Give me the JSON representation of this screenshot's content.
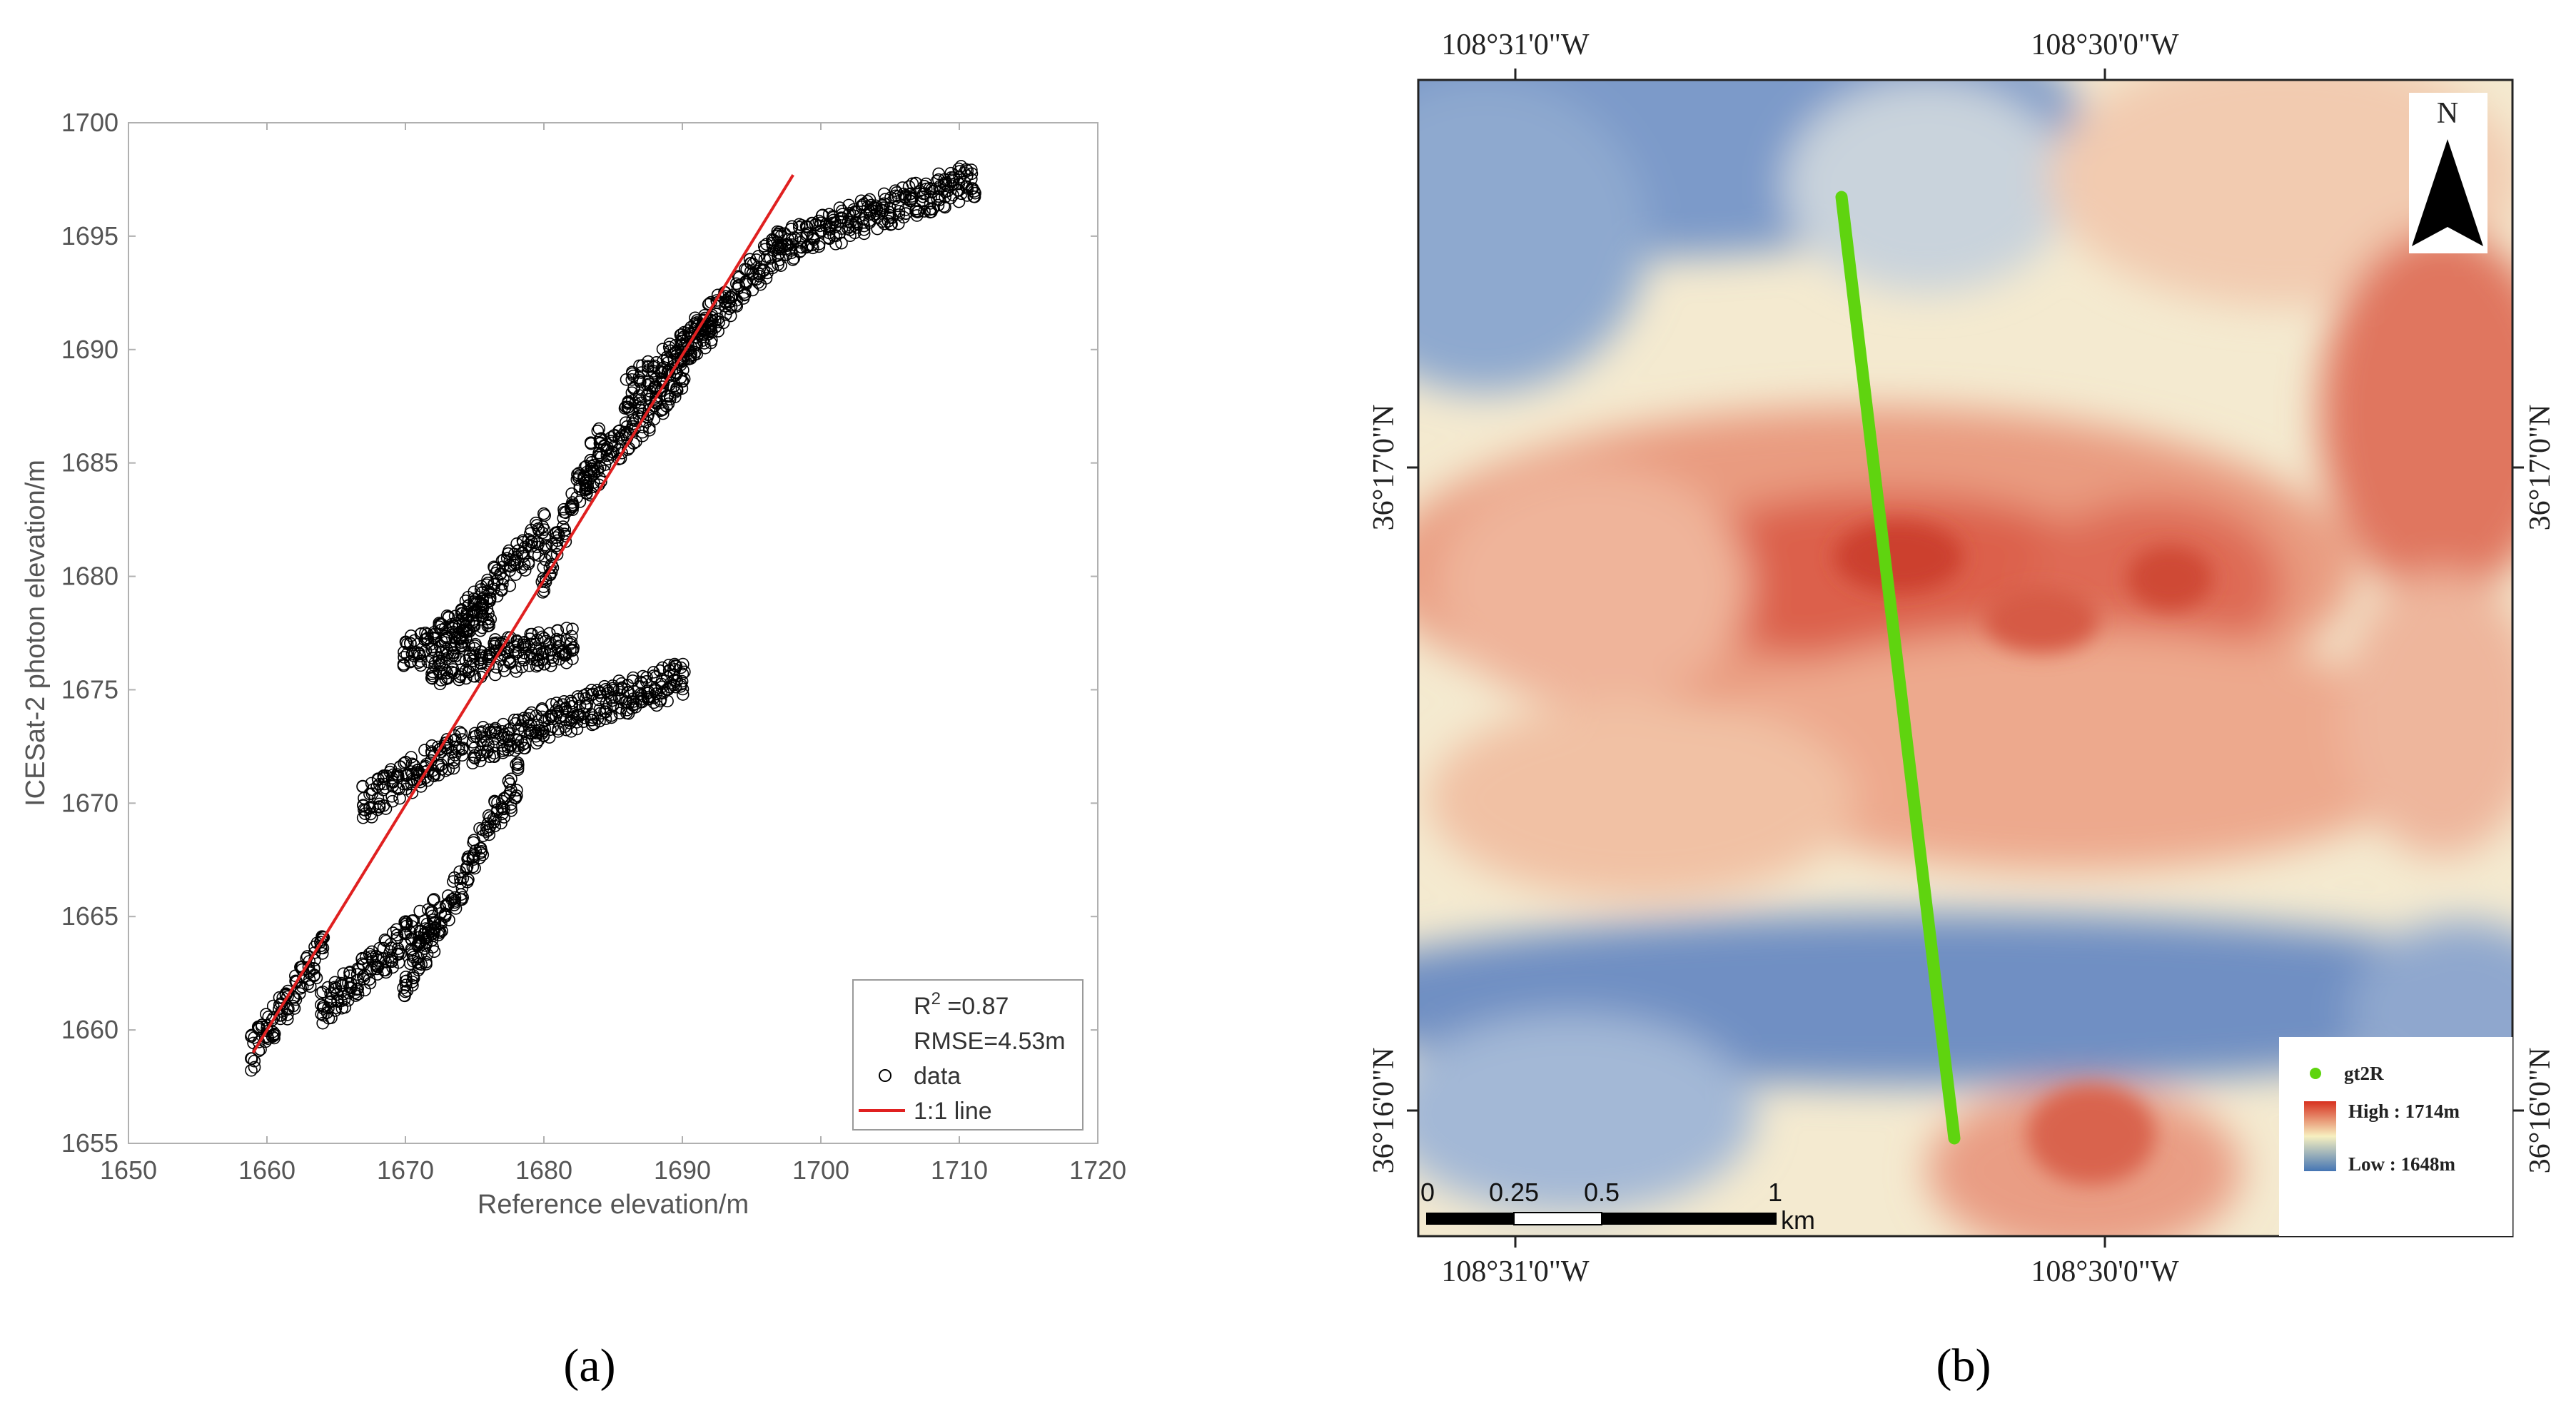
{
  "panels": {
    "a": {
      "label": "(a)",
      "chart_data": {
        "type": "scatter",
        "title": "",
        "xlabel": "Reference elevation/m",
        "ylabel": "ICESat-2 photon elevation/m",
        "xlim": [
          1650,
          1720
        ],
        "ylim": [
          1655,
          1700
        ],
        "xticks": [
          1650,
          1660,
          1670,
          1680,
          1690,
          1700,
          1710,
          1720
        ],
        "yticks": [
          1655,
          1660,
          1665,
          1670,
          1675,
          1680,
          1685,
          1690,
          1695,
          1700
        ],
        "series": [
          {
            "name": "data",
            "marker": "open-circle",
            "color": "#000000",
            "clusters": [
              {
                "x": [
                  1659,
                  1664
                ],
                "y": [
                  1659,
                  1663.5
                ]
              },
              {
                "x": [
                  1664,
                  1672
                ],
                "y": [
                  1661,
                  1665
                ]
              },
              {
                "x": [
                  1667,
                  1674
                ],
                "y": [
                  1670,
                  1672.5
                ]
              },
              {
                "x": [
                  1670,
                  1678
                ],
                "y": [
                  1662,
                  1671
                ]
              },
              {
                "x": [
                  1670,
                  1676
                ],
                "y": [
                  1676.5,
                  1678.5
                ]
              },
              {
                "x": [
                  1674,
                  1680
                ],
                "y": [
                  1678,
                  1682
                ]
              },
              {
                "x": [
                  1672,
                  1682
                ],
                "y": [
                  1676,
                  1677
                ]
              },
              {
                "x": [
                  1675,
                  1690
                ],
                "y": [
                  1672.5,
                  1675.5
                ]
              },
              {
                "x": [
                  1680,
                  1684
                ],
                "y": [
                  1680,
                  1686
                ]
              },
              {
                "x": [
                  1683,
                  1690
                ],
                "y": [
                  1684,
                  1689
                ]
              },
              {
                "x": [
                  1686,
                  1692
                ],
                "y": [
                  1688,
                  1691
                ]
              },
              {
                "x": [
                  1690,
                  1697
                ],
                "y": [
                  1690,
                  1694.5
                ]
              },
              {
                "x": [
                  1697,
                  1711
                ],
                "y": [
                  1694.5,
                  1697.5
                ]
              }
            ]
          }
        ],
        "reference_line": {
          "name": "1:1 line",
          "color": "#e02020",
          "x": [
            1659,
            1698
          ],
          "y": [
            1659,
            1697.7
          ]
        },
        "legend": {
          "position": "bottom-right",
          "r2_prefix": "R",
          "r2_sup": "2",
          "r2_value": " =0.87",
          "rmse": "RMSE=4.53m",
          "data_label": "data",
          "line_label": "1:1 line"
        }
      }
    },
    "b": {
      "label": "(b)",
      "map": {
        "top_lon_labels": [
          "108°31'0\"W",
          "108°30'0\"W"
        ],
        "bottom_lon_labels": [
          "108°31'0\"W",
          "108°30'0\"W"
        ],
        "left_lat_labels": [
          "36°17'0\"N",
          "36°16'0\"N"
        ],
        "right_lat_labels": [
          "36°17'0\"N",
          "36°16'0\"N"
        ],
        "north_label": "N",
        "track_name": "gt2R",
        "track_color": "#5fd40f",
        "legend_high": "High : 1714m",
        "legend_low": "Low : 1648m",
        "high_color": "#d7301f",
        "low_color": "#4575b4",
        "scale_ticks": [
          "0",
          "0.25",
          "0.5",
          "1"
        ],
        "scale_unit": "km"
      }
    }
  }
}
